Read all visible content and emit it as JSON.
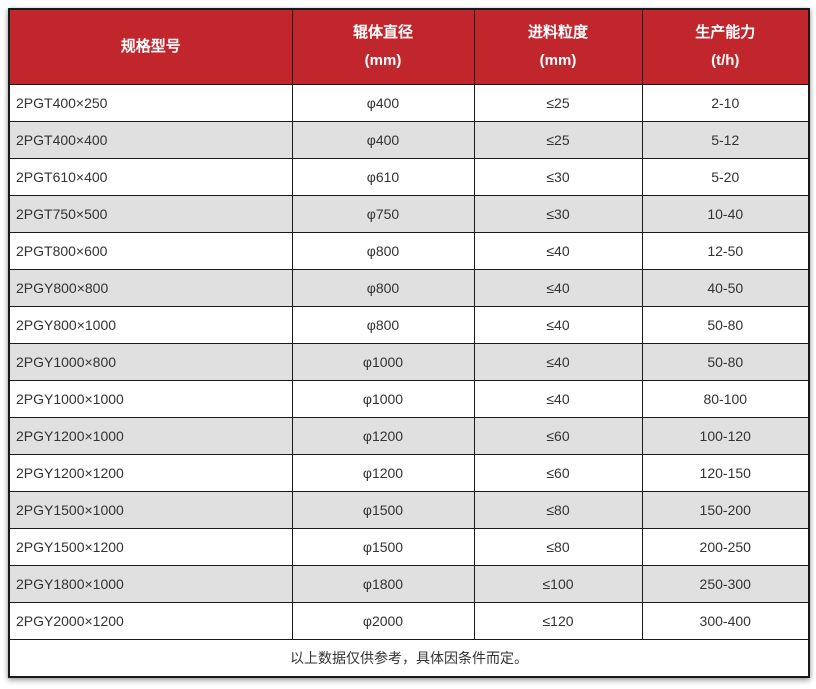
{
  "chart_data": {
    "type": "table",
    "headers": [
      {
        "title": "规格型号",
        "unit": ""
      },
      {
        "title": "辊体直径",
        "unit": "(mm)"
      },
      {
        "title": "进料粒度",
        "unit": "(mm)"
      },
      {
        "title": "生产能力",
        "unit": "(t/h)"
      }
    ],
    "rows": [
      [
        "2PGT400×250",
        "φ400",
        "≤25",
        "2-10"
      ],
      [
        "2PGT400×400",
        "φ400",
        "≤25",
        "5-12"
      ],
      [
        "2PGT610×400",
        "φ610",
        "≤30",
        "5-20"
      ],
      [
        "2PGT750×500",
        "φ750",
        "≤30",
        "10-40"
      ],
      [
        "2PGT800×600",
        "φ800",
        "≤40",
        "12-50"
      ],
      [
        "2PGY800×800",
        "φ800",
        "≤40",
        "40-50"
      ],
      [
        "2PGY800×1000",
        "φ800",
        "≤40",
        "50-80"
      ],
      [
        "2PGY1000×800",
        "φ1000",
        "≤40",
        "50-80"
      ],
      [
        "2PGY1000×1000",
        "φ1000",
        "≤40",
        "80-100"
      ],
      [
        "2PGY1200×1000",
        "φ1200",
        "≤60",
        "100-120"
      ],
      [
        "2PGY1200×1200",
        "φ1200",
        "≤60",
        "120-150"
      ],
      [
        "2PGY1500×1000",
        "φ1500",
        "≤80",
        "150-200"
      ],
      [
        "2PGY1500×1200",
        "φ1500",
        "≤80",
        "200-250"
      ],
      [
        "2PGY1800×1000",
        "φ1800",
        "≤100",
        "250-300"
      ],
      [
        "2PGY2000×1200",
        "φ2000",
        "≤120",
        "300-400"
      ]
    ],
    "footer_note": "以上数据仅供参考，具体因条件而定。"
  },
  "colors": {
    "header_bg": "#c1262d",
    "header_text": "#ffffff",
    "row_bg": "#ffffff",
    "row_alt_bg": "#e0e0e0",
    "border": "#1a1a1a",
    "body_text": "#333333"
  }
}
